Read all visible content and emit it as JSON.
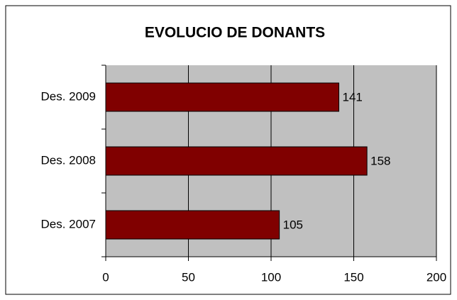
{
  "chart_data": {
    "type": "hbar",
    "title": "EVOLUCIO DE DONANTS",
    "categories": [
      "Des. 2007",
      "Des. 2008",
      "Des. 2009"
    ],
    "values": [
      105,
      158,
      141
    ],
    "color": "#800000",
    "xlim": [
      0,
      200
    ],
    "xticks": [
      0,
      50,
      100,
      150,
      200
    ],
    "grid": true
  }
}
